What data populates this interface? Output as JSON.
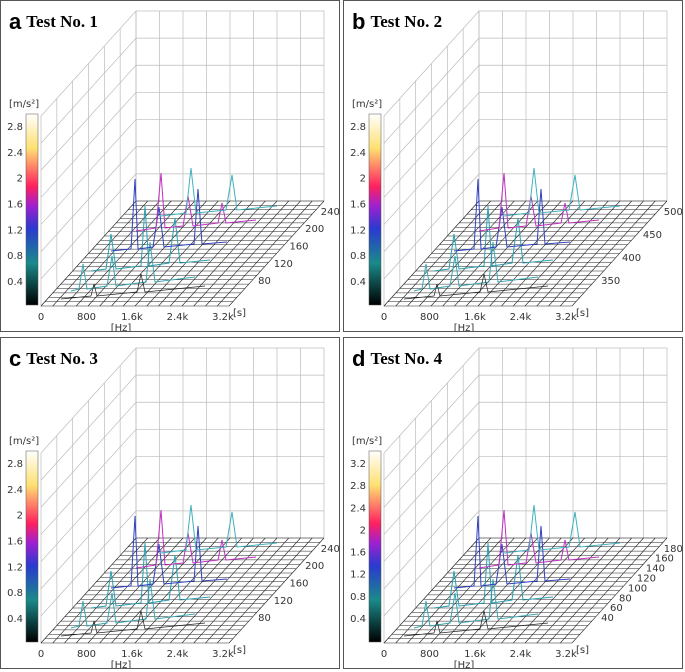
{
  "panels": [
    {
      "letter": "a",
      "title": "Test No. 1",
      "z_unit": "[m/s²]",
      "z_ticks": [
        "0.4",
        "0.8",
        "1.2",
        "1.6",
        "2",
        "2.4",
        "2.8"
      ],
      "x_ticks": [
        "0",
        "800",
        "1.6k",
        "2.4k",
        "3.2k"
      ],
      "x_unit": "[Hz]",
      "y_unit": "[s]",
      "y_ticks": [
        "80",
        "120",
        "160",
        "200",
        "240"
      ]
    },
    {
      "letter": "b",
      "title": "Test No. 2",
      "z_unit": "[m/s²]",
      "z_ticks": [
        "0.4",
        "0.8",
        "1.2",
        "1.6",
        "2",
        "2.4",
        "2.8"
      ],
      "x_ticks": [
        "0",
        "800",
        "1.6k",
        "2.4k",
        "3.2k"
      ],
      "x_unit": "[Hz]",
      "y_unit": "[s]",
      "y_ticks": [
        "350",
        "400",
        "450",
        "500"
      ]
    },
    {
      "letter": "c",
      "title": "Test No. 3",
      "z_unit": "[m/s²]",
      "z_ticks": [
        "0.4",
        "0.8",
        "1.2",
        "1.6",
        "2",
        "2.4",
        "2.8"
      ],
      "x_ticks": [
        "0",
        "800",
        "1.6k",
        "2.4k",
        "3.2k"
      ],
      "x_unit": "[Hz]",
      "y_unit": "[s]",
      "y_ticks": [
        "80",
        "120",
        "160",
        "200",
        "240"
      ]
    },
    {
      "letter": "d",
      "title": "Test No. 4",
      "z_unit": "[m/s²]",
      "z_ticks": [
        "0.4",
        "0.8",
        "1.2",
        "1.6",
        "2",
        "2.4",
        "2.8",
        "3.2"
      ],
      "x_ticks": [
        "0",
        "800",
        "1.6k",
        "2.4k",
        "3.2k"
      ],
      "x_unit": "[Hz]",
      "y_unit": "[s]",
      "y_ticks": [
        "40",
        "60",
        "80",
        "100",
        "120",
        "140",
        "160",
        "180"
      ]
    }
  ]
}
